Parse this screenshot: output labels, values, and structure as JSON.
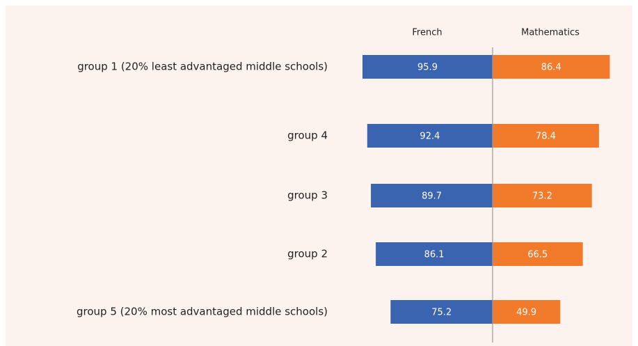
{
  "chart_data": {
    "type": "butterfly",
    "categories": [
      "group 1 (20% least advantaged middle schools)",
      "group 4",
      "group 3",
      "group 2",
      "group 5 (20% most advantaged middle schools)"
    ],
    "series": [
      {
        "name": "French",
        "color": "#3a63b0",
        "values": [
          95.9,
          92.4,
          89.7,
          86.1,
          75.2
        ]
      },
      {
        "name": "Mathematics",
        "color": "#f27a2b",
        "values": [
          86.4,
          78.4,
          73.2,
          66.5,
          49.9
        ]
      }
    ]
  }
}
